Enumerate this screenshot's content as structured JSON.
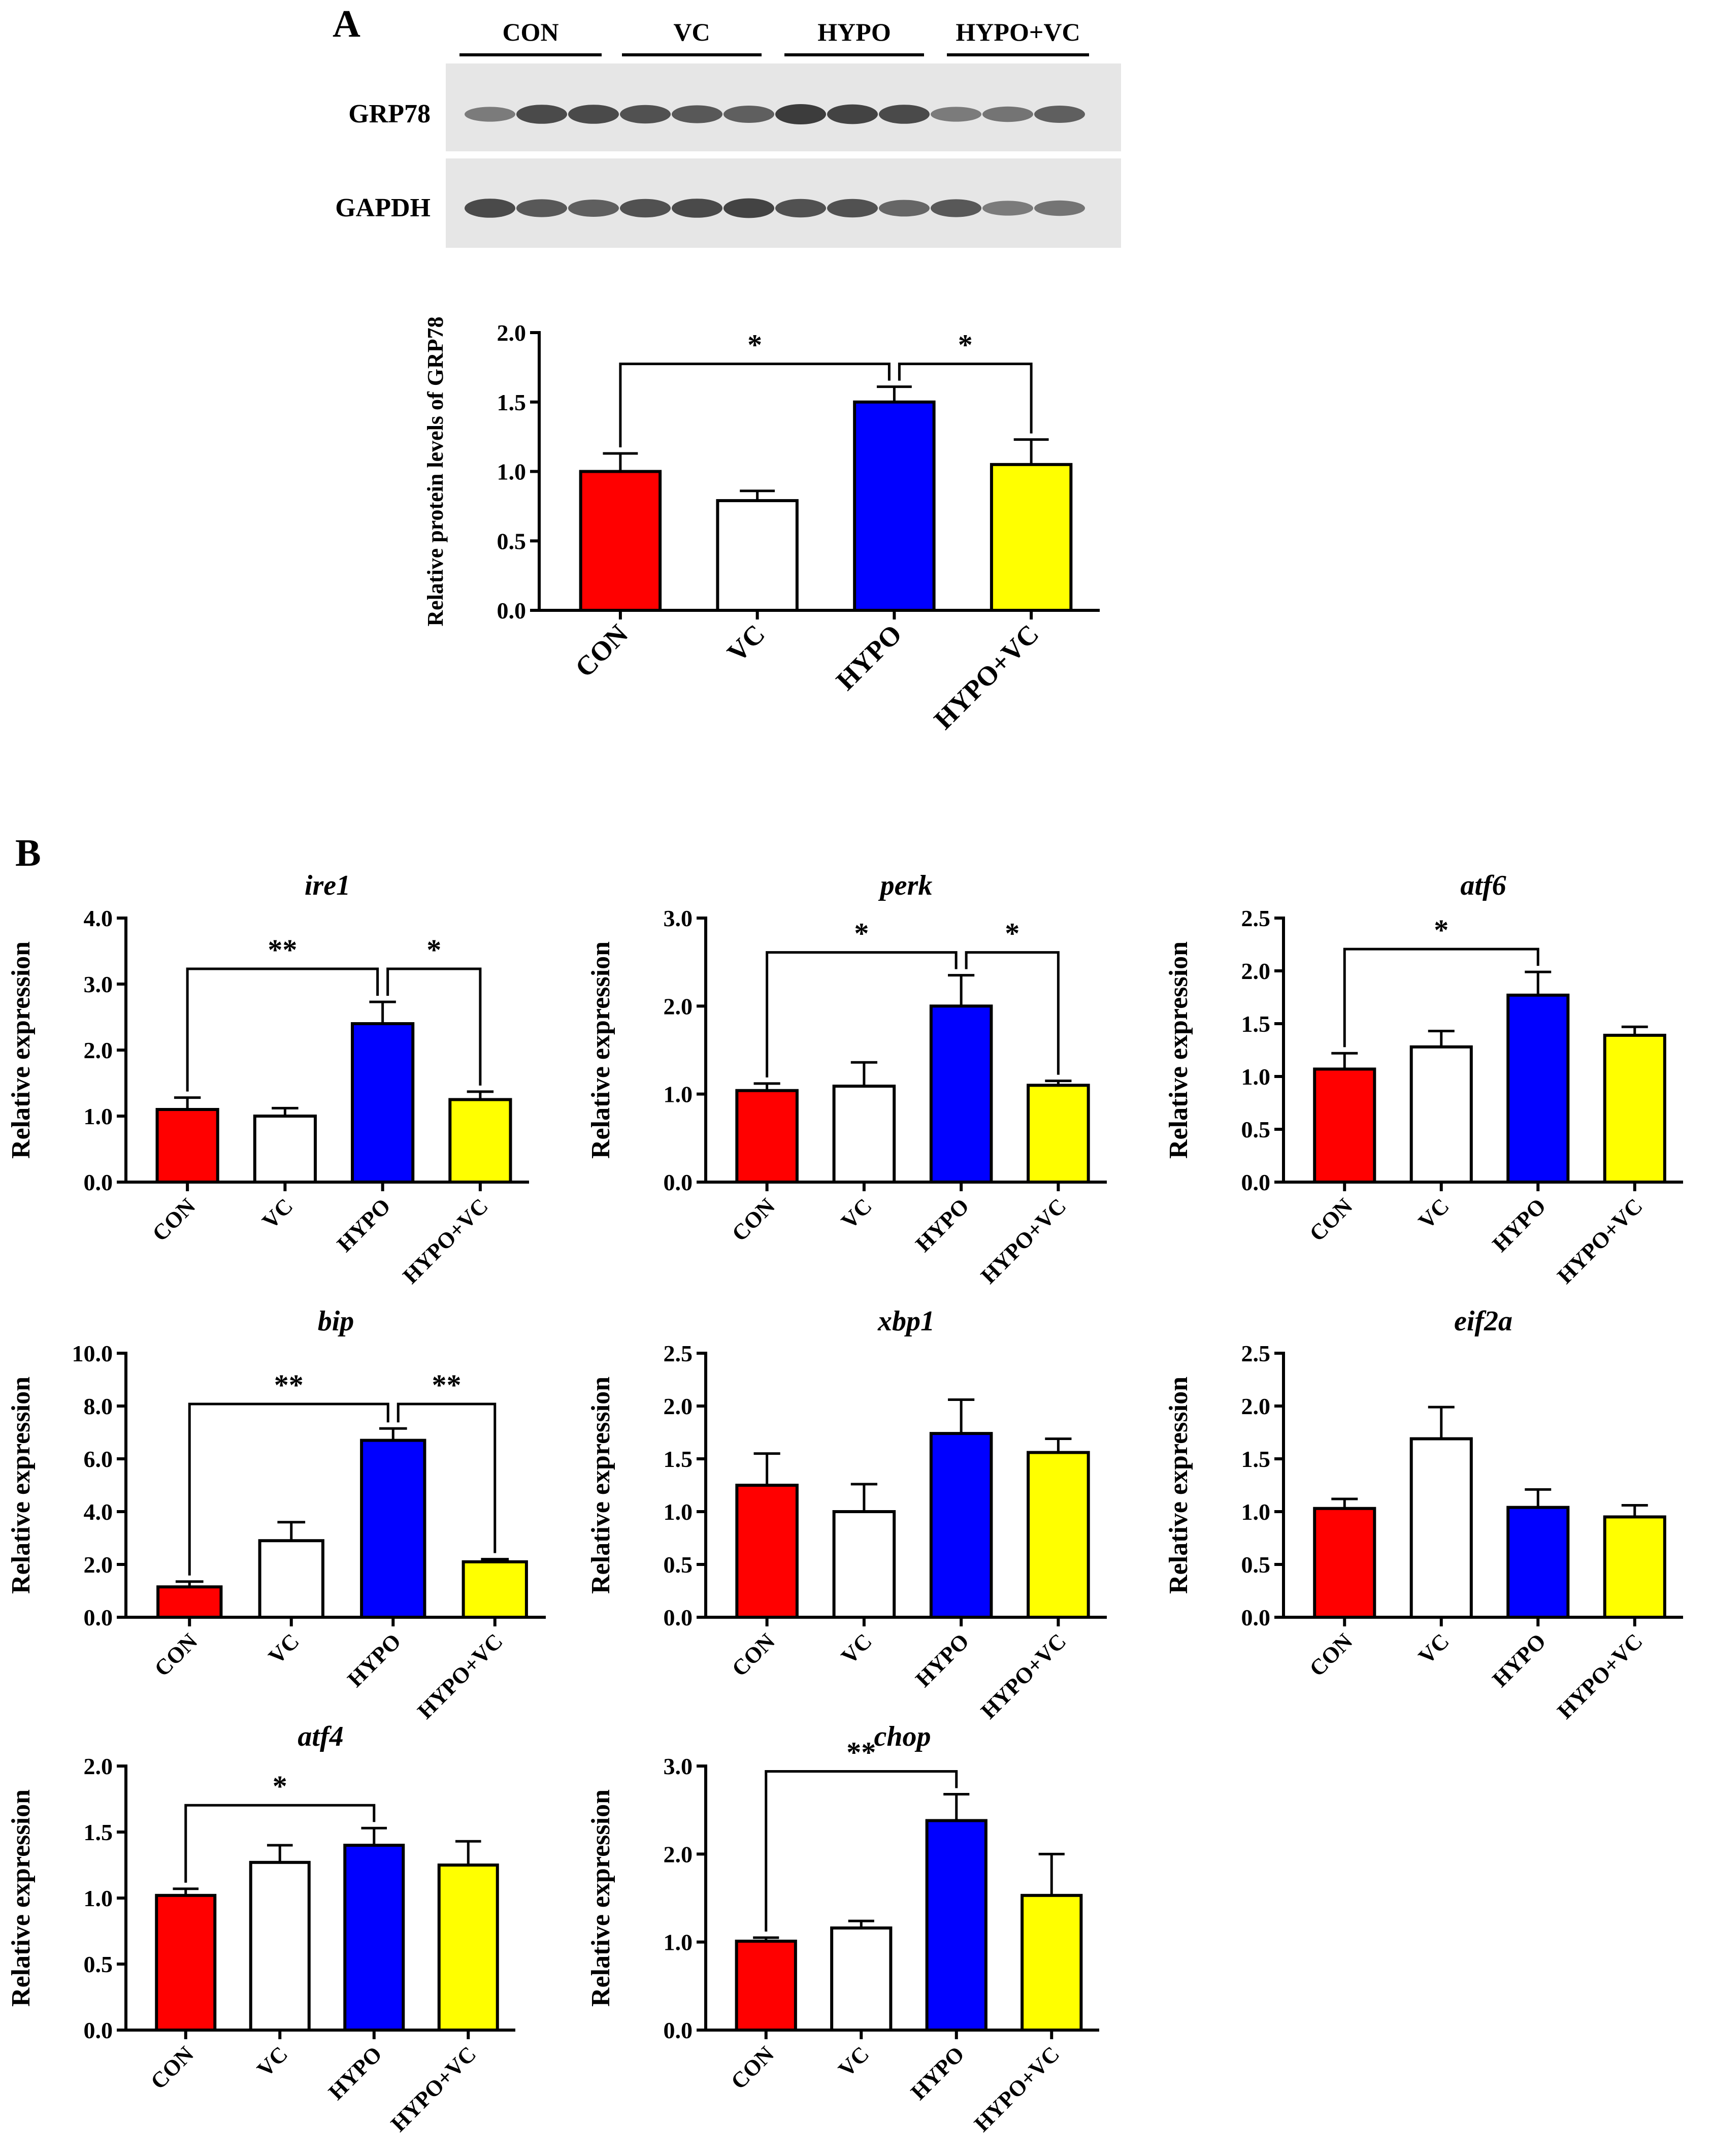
{
  "figure": {
    "panel_a_label": "A",
    "panel_b_label": "B",
    "blot": {
      "lane_groups": [
        "CON",
        "VC",
        "HYPO",
        "HYPO+VC"
      ],
      "rows": [
        {
          "label": "GRP78",
          "band_intensity": [
            0.55,
            0.9,
            0.9,
            0.85,
            0.8,
            0.75,
            1.0,
            0.95,
            0.9,
            0.55,
            0.6,
            0.75
          ]
        },
        {
          "label": "GAPDH",
          "band_intensity": [
            0.9,
            0.8,
            0.75,
            0.85,
            0.9,
            0.95,
            0.85,
            0.85,
            0.7,
            0.8,
            0.55,
            0.6
          ]
        }
      ]
    },
    "colors": {
      "CON": "#ff0000",
      "VC": "#ffffff",
      "HYPO": "#0000ff",
      "HYPO+VC": "#ffff00"
    }
  },
  "chart_data": [
    {
      "id": "grp78",
      "type": "bar",
      "title": "",
      "ylabel": "Relative protein levels of GRP78",
      "xlabel": "",
      "categories": [
        "CON",
        "VC",
        "HYPO",
        "HYPO+VC"
      ],
      "values": [
        1.0,
        0.79,
        1.5,
        1.05
      ],
      "errors": [
        0.13,
        0.07,
        0.11,
        0.18
      ],
      "ylim": [
        0,
        2.0
      ],
      "yticks": [
        "0.0",
        "0.5",
        "1.0",
        "1.5",
        "2.0"
      ],
      "significance": [
        {
          "from": 0,
          "to": 2,
          "label": "*"
        },
        {
          "from": 2,
          "to": 3,
          "label": "*"
        }
      ]
    },
    {
      "id": "ire1",
      "type": "bar",
      "title": "ire1",
      "ylabel": "Relative expression",
      "xlabel": "",
      "categories": [
        "CON",
        "VC",
        "HYPO",
        "HYPO+VC"
      ],
      "values": [
        1.1,
        1.0,
        2.4,
        1.25
      ],
      "errors": [
        0.18,
        0.12,
        0.33,
        0.12
      ],
      "ylim": [
        0,
        4.0
      ],
      "yticks": [
        "0.0",
        "1.0",
        "2.0",
        "3.0",
        "4.0"
      ],
      "significance": [
        {
          "from": 0,
          "to": 2,
          "label": "**"
        },
        {
          "from": 2,
          "to": 3,
          "label": "*"
        }
      ]
    },
    {
      "id": "perk",
      "type": "bar",
      "title": "perk",
      "ylabel": "Relative expression",
      "xlabel": "",
      "categories": [
        "CON",
        "VC",
        "HYPO",
        "HYPO+VC"
      ],
      "values": [
        1.04,
        1.09,
        2.0,
        1.1
      ],
      "errors": [
        0.08,
        0.27,
        0.35,
        0.05
      ],
      "ylim": [
        0,
        3.0
      ],
      "yticks": [
        "0.0",
        "1.0",
        "2.0",
        "3.0"
      ],
      "significance": [
        {
          "from": 0,
          "to": 2,
          "label": "*"
        },
        {
          "from": 2,
          "to": 3,
          "label": "*"
        }
      ]
    },
    {
      "id": "atf6",
      "type": "bar",
      "title": "atf6",
      "ylabel": "Relative expression",
      "xlabel": "",
      "categories": [
        "CON",
        "VC",
        "HYPO",
        "HYPO+VC"
      ],
      "values": [
        1.07,
        1.28,
        1.77,
        1.39
      ],
      "errors": [
        0.15,
        0.15,
        0.22,
        0.08
      ],
      "ylim": [
        0,
        2.5
      ],
      "yticks": [
        "0.0",
        "0.5",
        "1.0",
        "1.5",
        "2.0",
        "2.5"
      ],
      "significance": [
        {
          "from": 0,
          "to": 2,
          "label": "*"
        }
      ]
    },
    {
      "id": "bip",
      "type": "bar",
      "title": "bip",
      "ylabel": "Relative expression",
      "xlabel": "",
      "categories": [
        "CON",
        "VC",
        "HYPO",
        "HYPO+VC"
      ],
      "values": [
        1.15,
        2.9,
        6.7,
        2.1
      ],
      "errors": [
        0.2,
        0.7,
        0.45,
        0.1
      ],
      "ylim": [
        0,
        10.0
      ],
      "yticks": [
        "0.0",
        "2.0",
        "4.0",
        "6.0",
        "8.0",
        "10.0"
      ],
      "significance": [
        {
          "from": 0,
          "to": 2,
          "label": "**"
        },
        {
          "from": 2,
          "to": 3,
          "label": "**"
        }
      ]
    },
    {
      "id": "xbp1",
      "type": "bar",
      "title": "xbp1",
      "ylabel": "Relative expression",
      "xlabel": "",
      "categories": [
        "CON",
        "VC",
        "HYPO",
        "HYPO+VC"
      ],
      "values": [
        1.25,
        1.0,
        1.74,
        1.56
      ],
      "errors": [
        0.3,
        0.26,
        0.32,
        0.13
      ],
      "ylim": [
        0,
        2.5
      ],
      "yticks": [
        "0.0",
        "0.5",
        "1.0",
        "1.5",
        "2.0",
        "2.5"
      ],
      "significance": []
    },
    {
      "id": "eif2a",
      "type": "bar",
      "title": "eif2a",
      "ylabel": "Relative expression",
      "xlabel": "",
      "categories": [
        "CON",
        "VC",
        "HYPO",
        "HYPO+VC"
      ],
      "values": [
        1.03,
        1.69,
        1.04,
        0.95
      ],
      "errors": [
        0.09,
        0.3,
        0.17,
        0.11
      ],
      "ylim": [
        0,
        2.5
      ],
      "yticks": [
        "0.0",
        "0.5",
        "1.0",
        "1.5",
        "2.0",
        "2.5"
      ],
      "significance": []
    },
    {
      "id": "atf4",
      "type": "bar",
      "title": "atf4",
      "ylabel": "Relative expression",
      "xlabel": "",
      "categories": [
        "CON",
        "VC",
        "HYPO",
        "HYPO+VC"
      ],
      "values": [
        1.02,
        1.27,
        1.4,
        1.25
      ],
      "errors": [
        0.05,
        0.13,
        0.13,
        0.18
      ],
      "ylim": [
        0,
        2.0
      ],
      "yticks": [
        "0.0",
        "0.5",
        "1.0",
        "1.5",
        "2.0"
      ],
      "significance": [
        {
          "from": 0,
          "to": 2,
          "label": "*"
        }
      ]
    },
    {
      "id": "chop",
      "type": "bar",
      "title": "chop",
      "ylabel": "Relative expression",
      "xlabel": "",
      "categories": [
        "CON",
        "VC",
        "HYPO",
        "HYPO+VC"
      ],
      "values": [
        1.01,
        1.16,
        2.38,
        1.53
      ],
      "errors": [
        0.04,
        0.08,
        0.3,
        0.47
      ],
      "ylim": [
        0,
        3.0
      ],
      "yticks": [
        "0.0",
        "1.0",
        "2.0",
        "3.0"
      ],
      "significance": [
        {
          "from": 0,
          "to": 2,
          "label": "**"
        }
      ]
    }
  ]
}
